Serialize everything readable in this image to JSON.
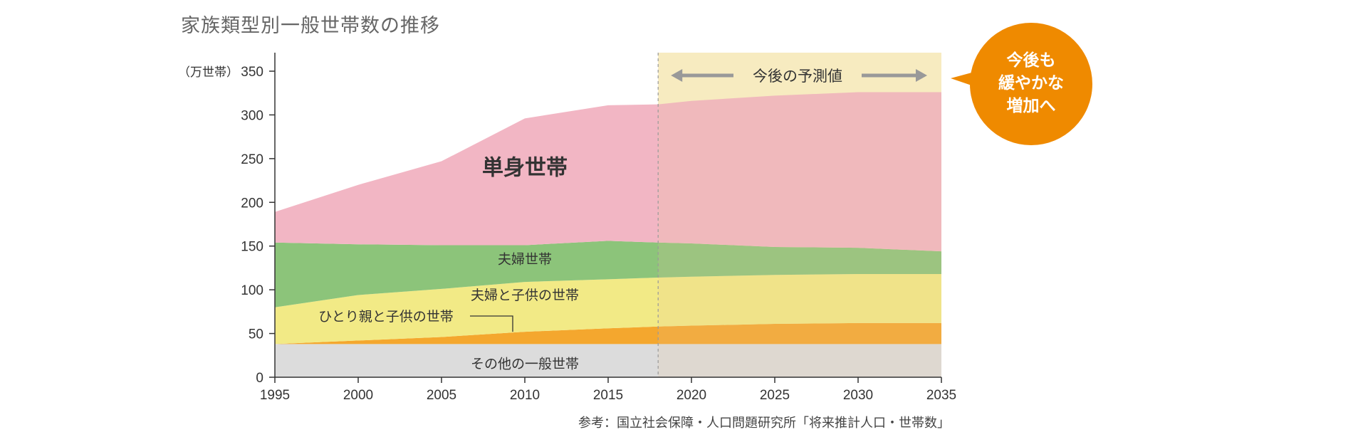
{
  "title": "家族類型別一般世帯数の推移",
  "source": "参考：国立社会保障・人口問題研究所「将来推計人口・世帯数」",
  "forecast_label": "今後の予測値",
  "callout": [
    "今後も",
    "緩やかな",
    "増加へ"
  ],
  "colors": {
    "single": "#f2b6c4",
    "couple": "#8cc47a",
    "couple_children": "#f2ea86",
    "single_parent": "#f4a72e",
    "other": "#dcdcdc",
    "forecast_shade": "#fbf3c8",
    "callout": "#ef8a00"
  },
  "chart_data": {
    "type": "area",
    "stacked": true,
    "unit_label": "（万世帯）",
    "x": [
      1995,
      2000,
      2005,
      2010,
      2015,
      2018,
      2020,
      2025,
      2030,
      2035
    ],
    "xticks": [
      "1995",
      "2000",
      "2005",
      "2010",
      "2015",
      "2020",
      "2025",
      "2030",
      "2035"
    ],
    "yticks": [
      "0",
      "50",
      "100",
      "150",
      "200",
      "250",
      "300",
      "350"
    ],
    "ylim": [
      0,
      350
    ],
    "forecast_start": 2018,
    "series": [
      {
        "key": "other",
        "name": "その他の一般世帯",
        "values": [
          38,
          38,
          38,
          38,
          38,
          38,
          38,
          38,
          38,
          38
        ]
      },
      {
        "key": "single_parent",
        "name": "ひとり親と子供の世帯",
        "values": [
          0,
          4,
          8,
          14,
          18,
          20,
          21,
          23,
          24,
          24
        ]
      },
      {
        "key": "couple_children",
        "name": "夫婦と子供の世帯",
        "values": [
          42,
          52,
          55,
          57,
          56,
          56,
          56,
          56,
          56,
          56
        ]
      },
      {
        "key": "couple",
        "name": "夫婦世帯",
        "values": [
          74,
          58,
          50,
          42,
          44,
          40,
          38,
          32,
          30,
          26
        ]
      },
      {
        "key": "single",
        "name": "単身世帯",
        "values": [
          35,
          68,
          96,
          145,
          155,
          158,
          163,
          173,
          178,
          182
        ]
      }
    ]
  }
}
